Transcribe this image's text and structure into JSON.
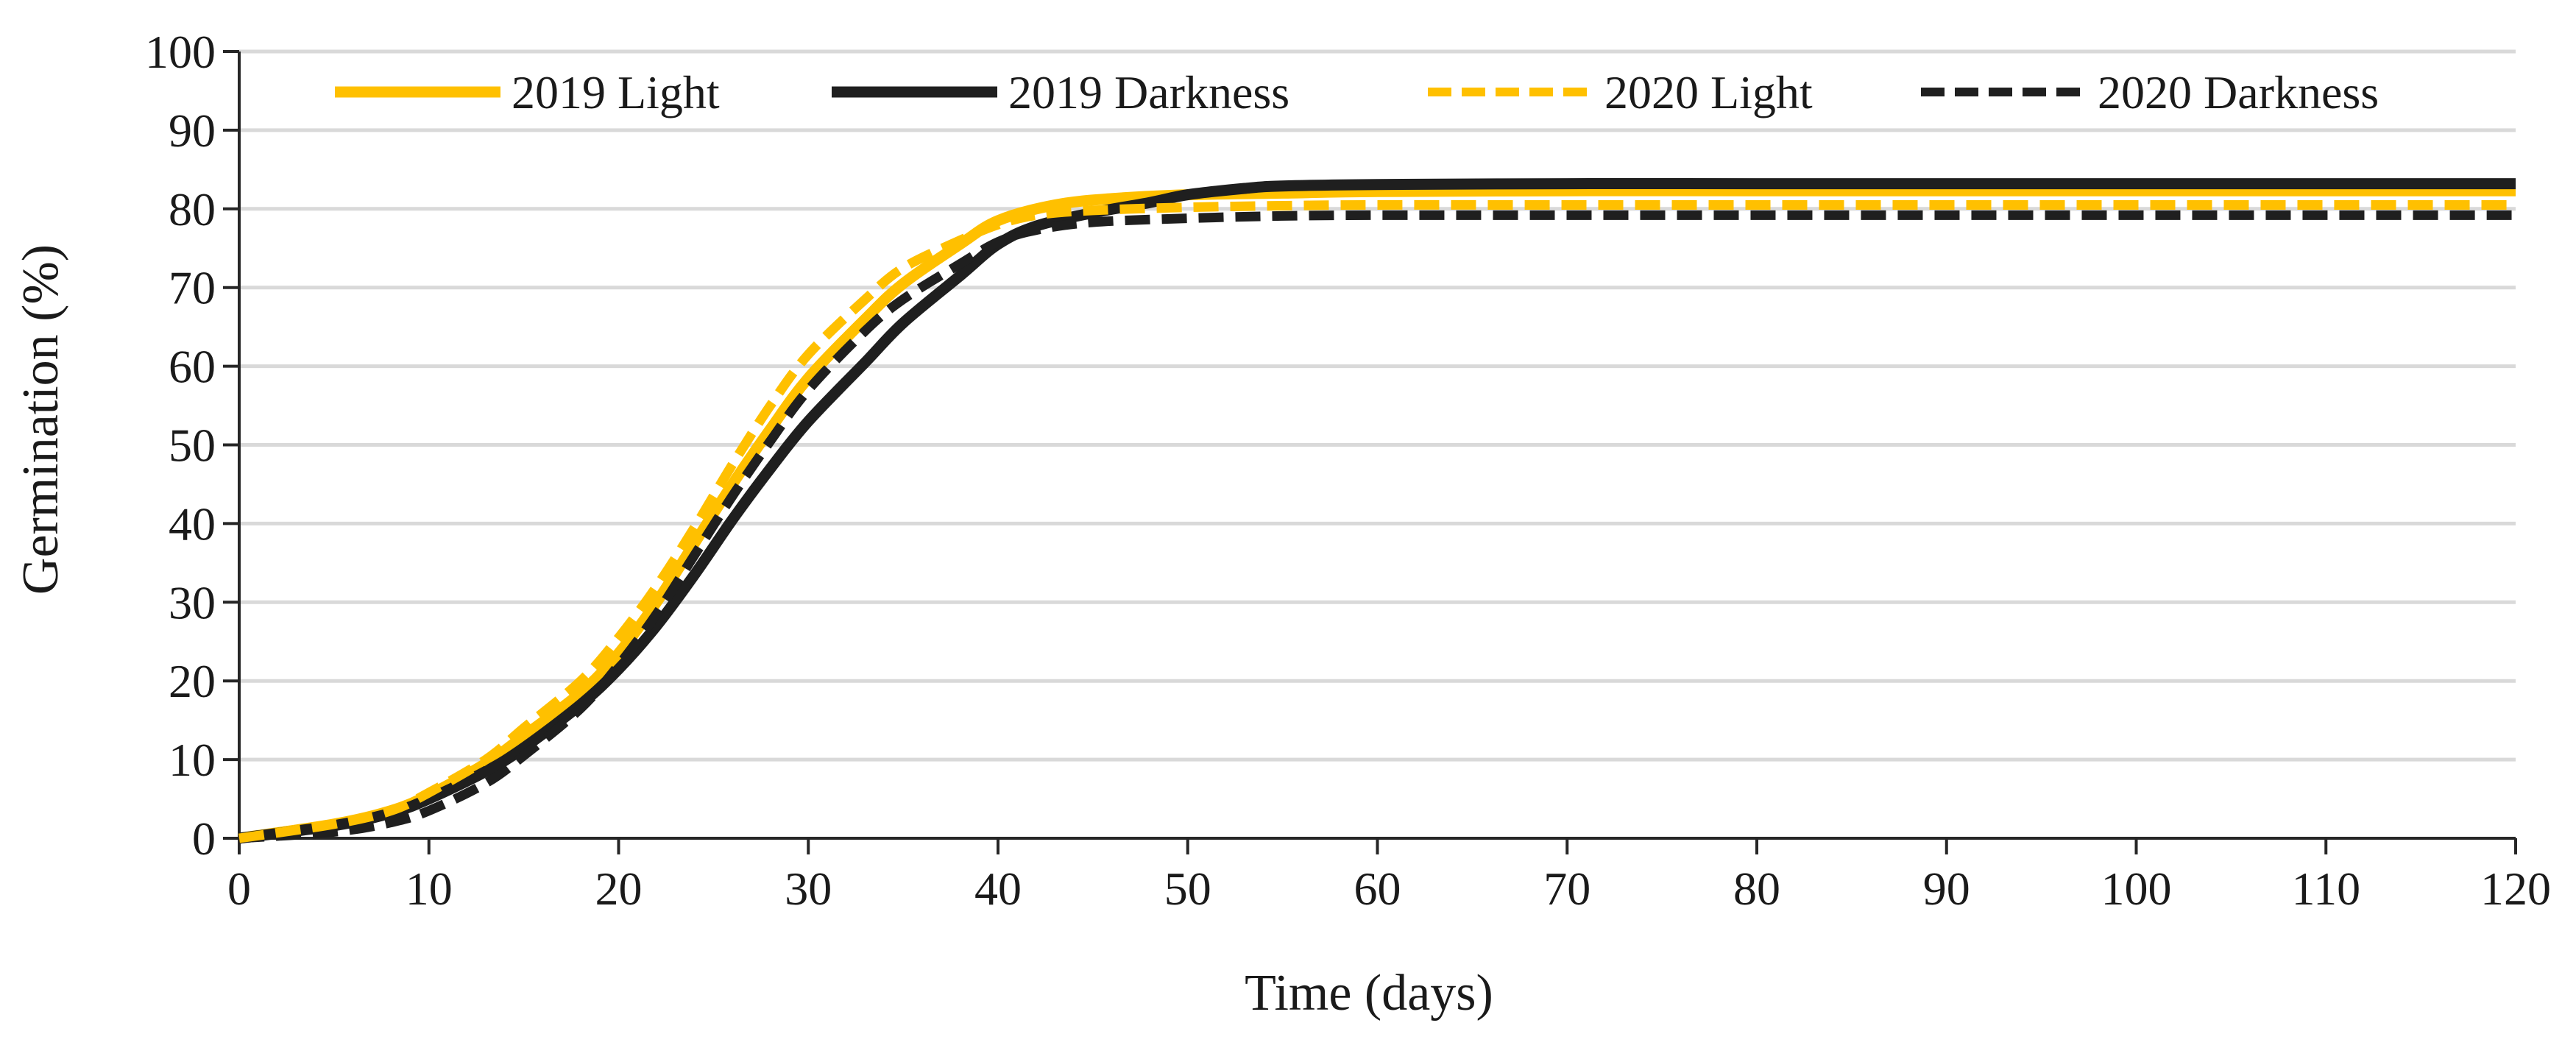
{
  "chart_data": {
    "type": "line",
    "title": "",
    "xlabel": "Time (days)",
    "ylabel": "Germination (%)",
    "xlim": [
      0,
      120
    ],
    "ylim": [
      0,
      100
    ],
    "xticks": [
      0,
      10,
      20,
      30,
      40,
      50,
      60,
      70,
      80,
      90,
      100,
      110,
      120
    ],
    "yticks": [
      0,
      10,
      20,
      30,
      40,
      50,
      60,
      70,
      80,
      90,
      100
    ],
    "grid": "horizontal",
    "legend_position": "top",
    "series": [
      {
        "name": "2019 Light",
        "color": "#FFC000",
        "style": "solid",
        "x": [
          0,
          5,
          8,
          10,
          13,
          15,
          18,
          20,
          22,
          24,
          26,
          28,
          30,
          33,
          35,
          38,
          40,
          43,
          46,
          50,
          55,
          60,
          70,
          80,
          90,
          100,
          110,
          120
        ],
        "y": [
          0,
          1.8,
          3.5,
          5.5,
          9.5,
          13,
          18.5,
          23.5,
          30,
          37.5,
          45,
          52,
          58.5,
          66,
          70.5,
          75.5,
          78.5,
          80.5,
          81.3,
          81.8,
          82,
          82.2,
          82.3,
          82.3,
          82.3,
          82.3,
          82.3,
          82.3
        ]
      },
      {
        "name": "2019 Darkness",
        "color": "#1F1F1F",
        "style": "solid",
        "x": [
          0,
          5,
          8,
          10,
          13,
          15,
          18,
          20,
          22,
          24,
          26,
          28,
          30,
          33,
          35,
          38,
          40,
          42,
          45,
          48,
          50,
          53,
          55,
          60,
          70,
          80,
          90,
          100,
          110,
          120
        ],
        "y": [
          0,
          1.6,
          3.2,
          5,
          8.5,
          11.5,
          17,
          21.5,
          27,
          33.5,
          40.5,
          47,
          53,
          60.5,
          65.5,
          71.5,
          75.5,
          77.8,
          79.5,
          80.8,
          81.8,
          82.6,
          82.9,
          83.1,
          83.2,
          83.2,
          83.2,
          83.2,
          83.2,
          83.2
        ]
      },
      {
        "name": "2020 Light",
        "color": "#FFC000",
        "style": "dashed",
        "x": [
          0,
          5,
          8,
          10,
          13,
          15,
          18,
          20,
          22,
          24,
          26,
          28,
          30,
          33,
          35,
          38,
          40,
          42,
          45,
          50,
          55,
          60,
          70,
          80,
          90,
          100,
          110,
          120
        ],
        "y": [
          0,
          1.8,
          3.5,
          5.8,
          10,
          14,
          20,
          25.5,
          32,
          39.5,
          47.5,
          55,
          61.5,
          68.5,
          72.5,
          76,
          78,
          79.2,
          79.8,
          80.2,
          80.4,
          80.5,
          80.5,
          80.5,
          80.5,
          80.5,
          80.5,
          80.5
        ]
      },
      {
        "name": "2020 Darkness",
        "color": "#1F1F1F",
        "style": "dashed",
        "x": [
          0,
          5,
          8,
          10,
          13,
          15,
          18,
          20,
          22,
          24,
          26,
          28,
          30,
          33,
          35,
          38,
          40,
          42,
          45,
          50,
          55,
          60,
          70,
          80,
          90,
          100,
          110,
          120
        ],
        "y": [
          0,
          0.8,
          2,
          3.5,
          7,
          10.5,
          16.5,
          22,
          28.5,
          36,
          43.5,
          50.5,
          57,
          64.5,
          68.5,
          73,
          75.8,
          77.3,
          78.3,
          78.8,
          79.1,
          79.2,
          79.2,
          79.2,
          79.2,
          79.2,
          79.2,
          79.2
        ]
      }
    ]
  }
}
